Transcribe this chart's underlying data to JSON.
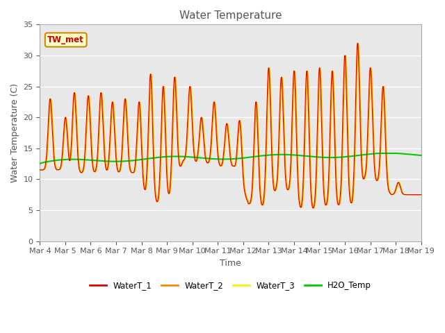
{
  "title": "Water Temperature",
  "xlabel": "Time",
  "ylabel": "Water Temperature (C)",
  "ylim": [
    0,
    35
  ],
  "xlim": [
    0,
    15
  ],
  "annotation": "TW_met",
  "plot_bg_color": "#e8e8e8",
  "grid_color": "white",
  "xtick_labels": [
    "Mar 4",
    "Mar 5",
    "Mar 6",
    "Mar 7",
    "Mar 8",
    "Mar 9",
    "Mar 10",
    "Mar 11",
    "Mar 12",
    "Mar 13",
    "Mar 14",
    "Mar 15",
    "Mar 16",
    "Mar 17",
    "Mar 18",
    "Mar 19"
  ],
  "series_colors": {
    "WaterT_1": "#dd0000",
    "WaterT_2": "#ff8800",
    "WaterT_3": "#ffee00",
    "H2O_Temp": "#00cc00"
  },
  "peak_times": [
    0.4,
    1.0,
    1.35,
    1.9,
    2.4,
    2.85,
    3.35,
    3.9,
    4.35,
    4.85,
    5.3,
    5.9,
    6.35,
    6.85,
    7.35,
    7.85,
    8.5,
    9.0,
    9.5,
    10.0,
    10.5,
    11.0,
    11.5,
    12.0,
    12.5,
    13.0,
    13.5,
    14.1,
    14.6
  ],
  "peak_heights": [
    23,
    20,
    24,
    23.5,
    24,
    22.5,
    23,
    22.5,
    27,
    25,
    26.5,
    25,
    20,
    22.5,
    19,
    19.5,
    22.5,
    28,
    26.5,
    27.5,
    27.5,
    28,
    27.5,
    30,
    32,
    28,
    25,
    9.5,
    7.5
  ],
  "trough_depths": [
    11.5,
    11,
    11,
    11,
    11,
    11,
    11,
    7.5,
    6,
    7,
    13,
    12.5,
    12.5,
    12,
    12,
    6,
    5.5,
    8,
    8,
    5,
    5,
    5.5,
    5.5,
    5.8,
    10,
    9.5,
    7.5,
    7.5,
    7.5
  ]
}
